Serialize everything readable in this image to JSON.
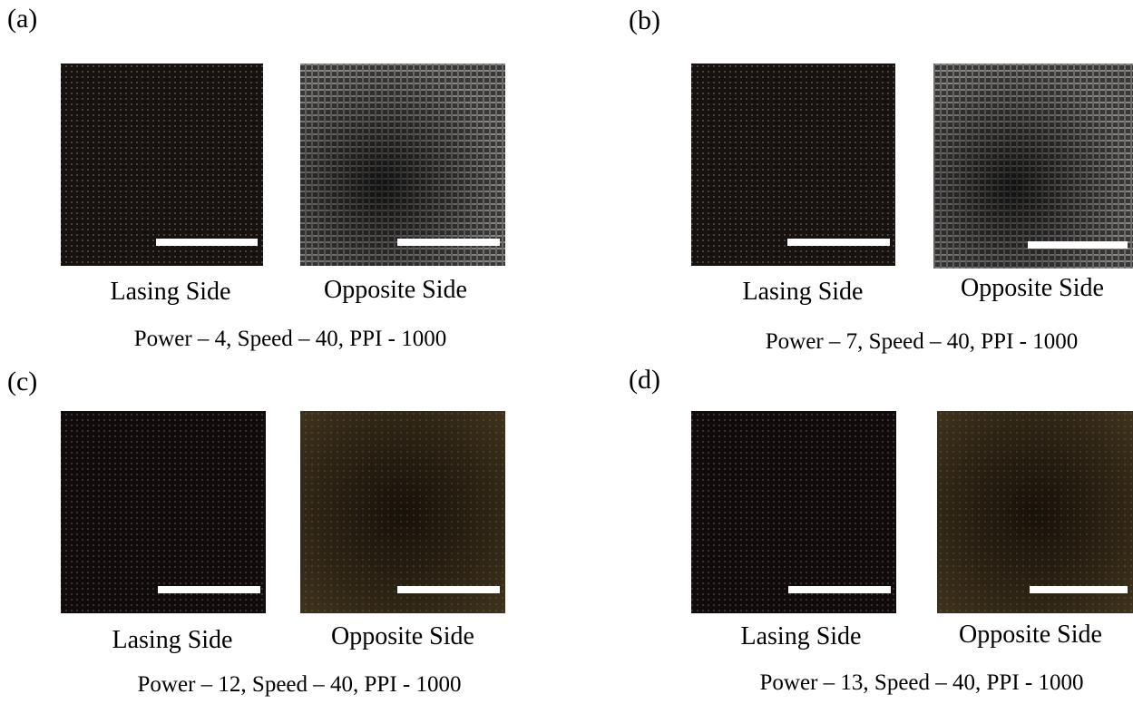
{
  "panels": [
    {
      "label": "(a)",
      "images": [
        {
          "caption": "Lasing Side"
        },
        {
          "caption": "Opposite Side"
        }
      ],
      "settings": "Power – 4, Speed – 40, PPI - 1000"
    },
    {
      "label": "(b)",
      "images": [
        {
          "caption": "Lasing Side"
        },
        {
          "caption": "Opposite Side"
        }
      ],
      "settings": "Power – 7, Speed – 40, PPI - 1000"
    },
    {
      "label": "(c)",
      "images": [
        {
          "caption": "Lasing Side"
        },
        {
          "caption": "Opposite Side"
        }
      ],
      "settings": "Power – 12, Speed – 40, PPI - 1000"
    },
    {
      "label": "(d)",
      "images": [
        {
          "caption": "Lasing Side"
        },
        {
          "caption": "Opposite Side"
        }
      ],
      "settings": "Power – 13, Speed – 40, PPI - 1000"
    }
  ]
}
